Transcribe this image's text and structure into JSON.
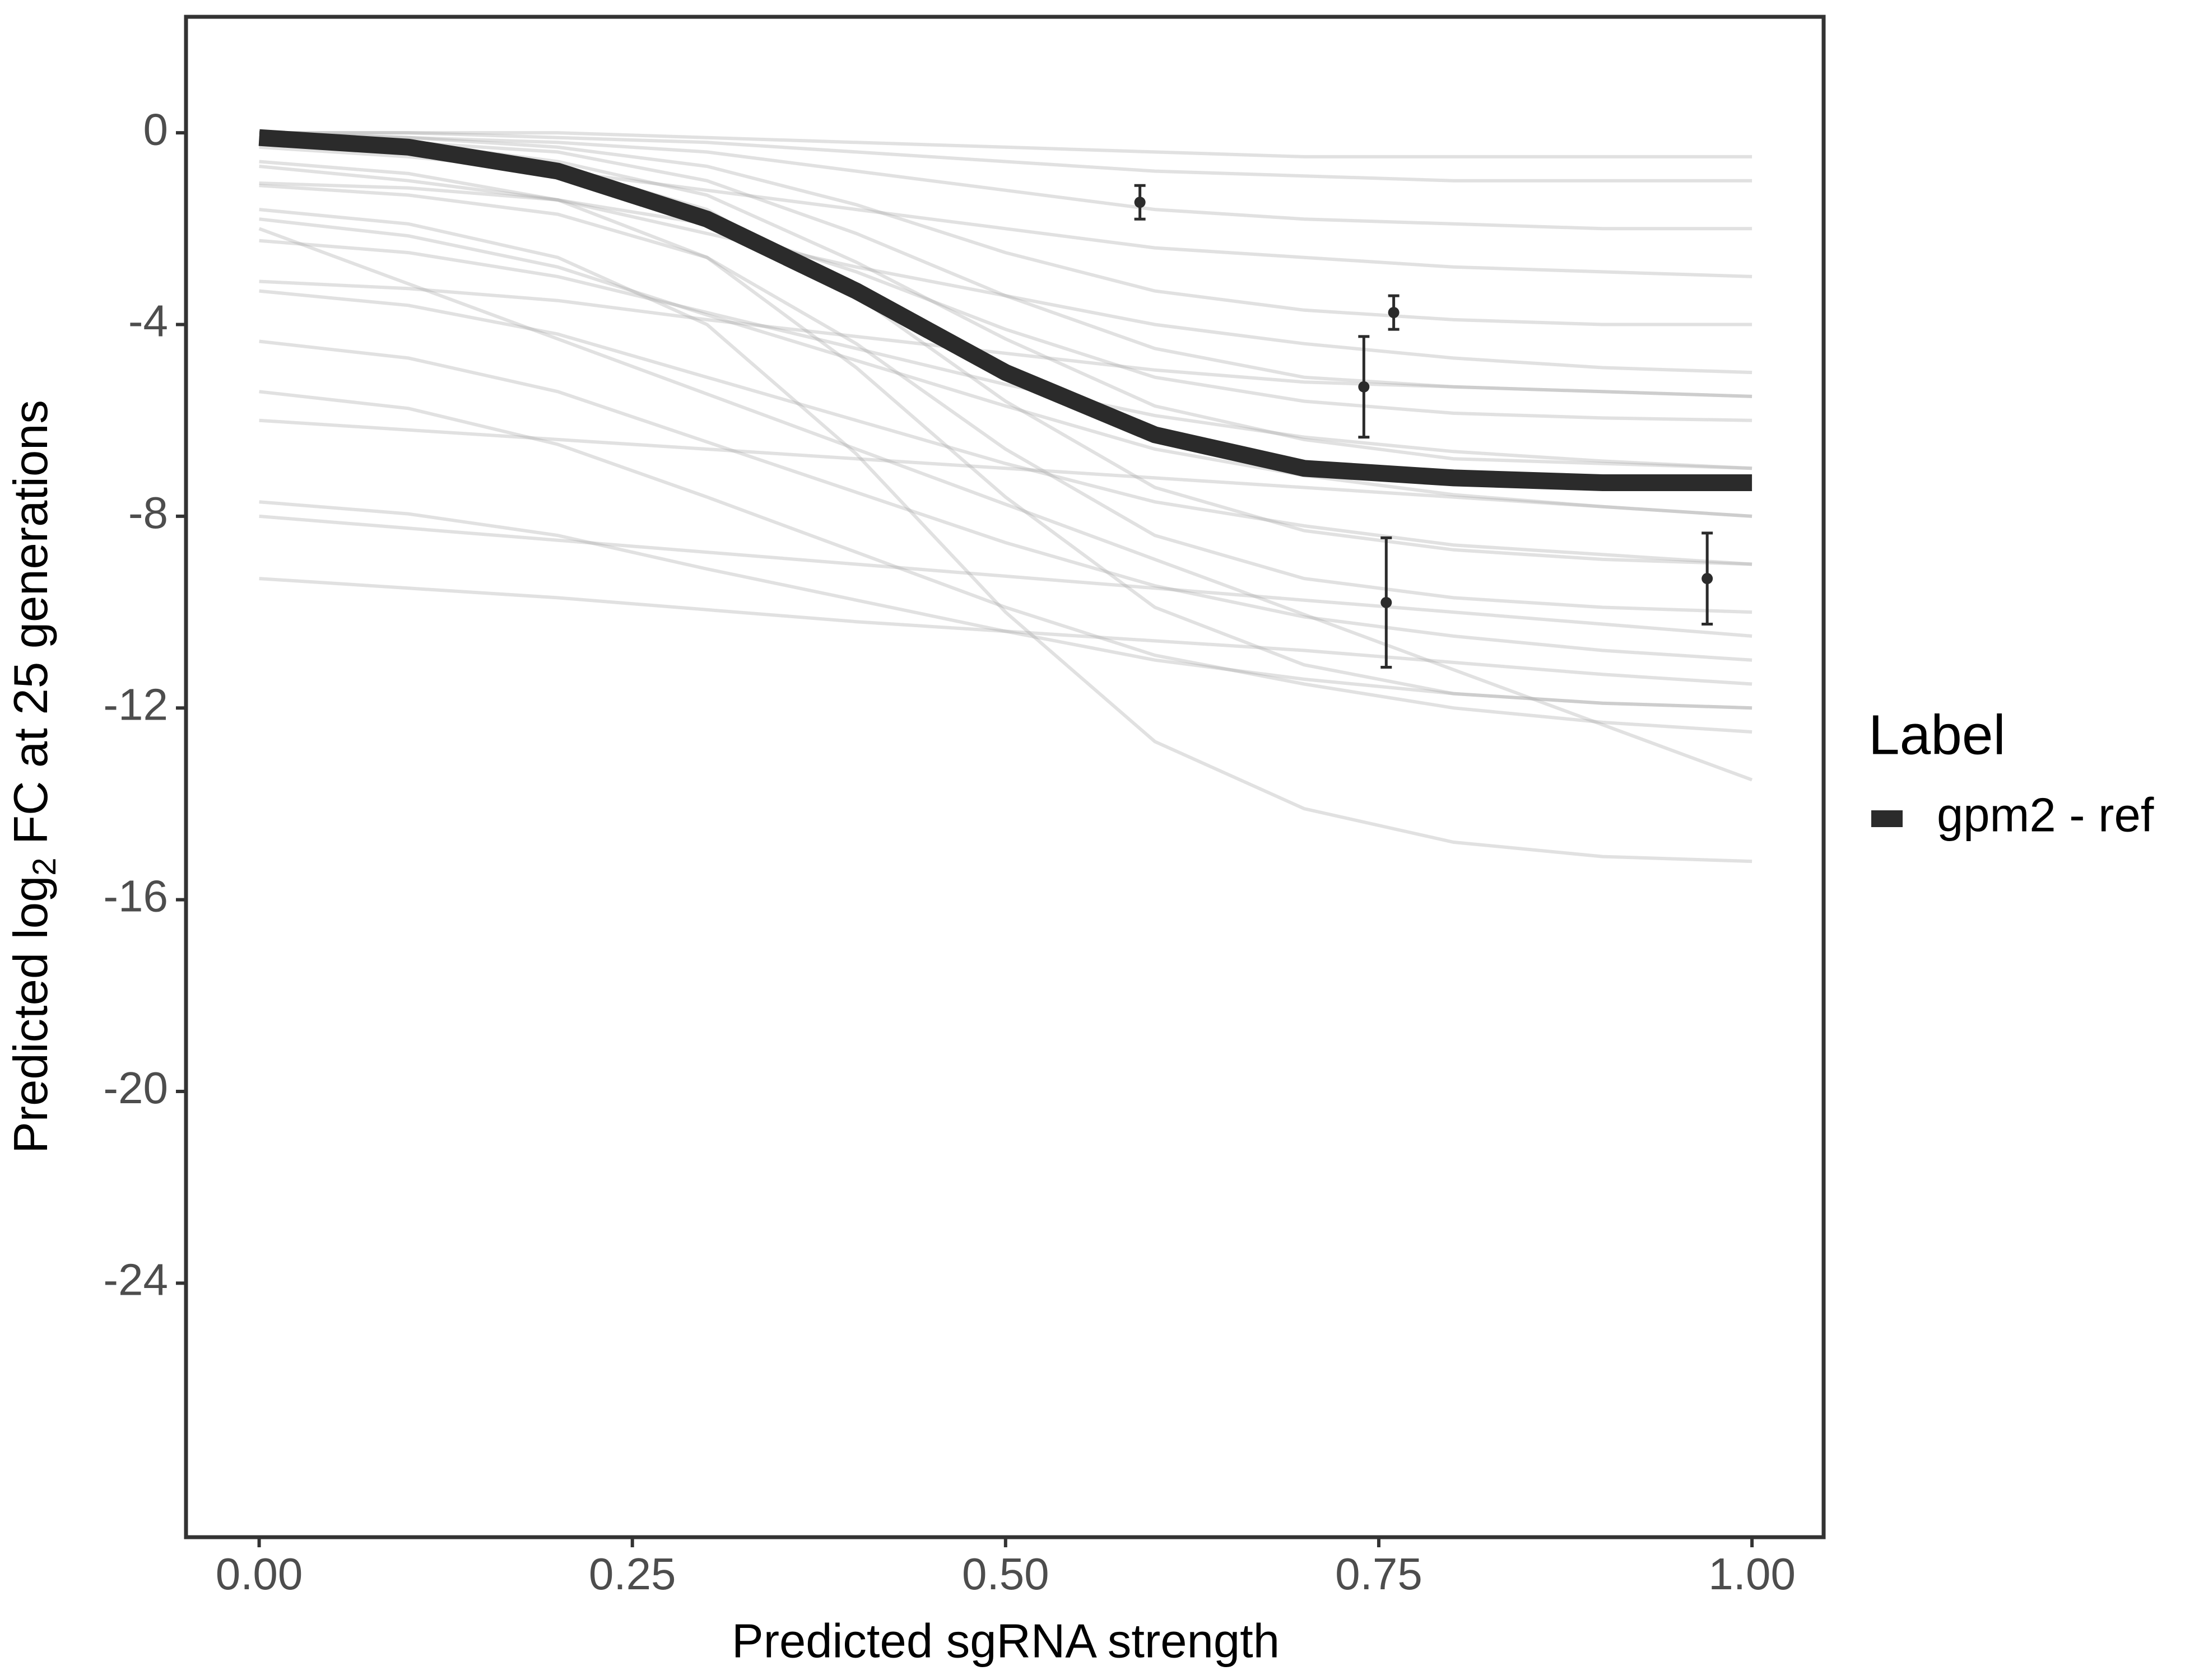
{
  "chart_data": {
    "type": "line",
    "x_label": "Predicted sgRNA strength",
    "y_label": [
      "Predicted  log",
      "2",
      " FC at 25 generations"
    ],
    "legend_title": "Label",
    "legend": "right",
    "x": [
      0,
      0.1,
      0.2,
      0.3,
      0.4,
      0.5,
      0.6,
      0.7,
      0.8,
      0.9,
      1.0
    ],
    "xlim": [
      -0.049,
      1.048
    ],
    "ylim": [
      -29.3,
      2.42
    ],
    "xticks": [
      {
        "value": 0,
        "label": "0.00"
      },
      {
        "value": 0.25,
        "label": "0.25"
      },
      {
        "value": 0.5,
        "label": "0.50"
      },
      {
        "value": 0.75,
        "label": "0.75"
      },
      {
        "value": 1,
        "label": "1.00"
      }
    ],
    "yticks": [
      0,
      -4,
      -8,
      -12,
      -16,
      -20,
      -24
    ],
    "draw_color": "#aaaaaa",
    "draws": [
      [
        0,
        0,
        0,
        -0.1,
        -0.2,
        -0.3,
        -0.4,
        -0.5,
        -0.5,
        -0.5,
        -0.5
      ],
      [
        0,
        -0.1,
        -0.2,
        -0.4,
        -0.8,
        -1.2,
        -1.6,
        -1.8,
        -1.9,
        -2,
        -2
      ],
      [
        0,
        -0.1,
        -0.3,
        -0.7,
        -1.5,
        -2.5,
        -3.3,
        -3.7,
        -3.9,
        -4,
        -4
      ],
      [
        -0.7,
        -1,
        -1.4,
        -2.1,
        -2.8,
        -3.4,
        -4,
        -4.4,
        -4.7,
        -4.9,
        -5
      ],
      [
        -1.05,
        -1.15,
        -1.4,
        -1.9,
        -2.9,
        -4.1,
        -5.1,
        -5.6,
        -5.85,
        -5.95,
        -6
      ],
      [
        -0.1,
        -0.2,
        -0.6,
        -1.3,
        -2.7,
        -4.3,
        -5.7,
        -6.4,
        -6.8,
        -6.9,
        -7
      ],
      [
        -2.25,
        -2.5,
        -3,
        -3.75,
        -4.5,
        -5.25,
        -5.9,
        -6.35,
        -6.65,
        -6.85,
        -7
      ],
      [
        -0.1,
        -0.3,
        -0.7,
        -1.6,
        -3.4,
        -5.6,
        -7.4,
        -8.3,
        -8.7,
        -8.9,
        -9
      ],
      [
        -3.3,
        -3.6,
        -4.2,
        -5.1,
        -6,
        -6.9,
        -7.7,
        -8.2,
        -8.6,
        -8.8,
        -9
      ],
      [
        -1.1,
        -1.3,
        -1.7,
        -2.6,
        -4.4,
        -6.6,
        -8.4,
        -9.3,
        -9.7,
        -9.9,
        -10
      ],
      [
        -4.35,
        -4.7,
        -5.4,
        -6.45,
        -7.5,
        -8.55,
        -9.45,
        -10.1,
        -10.5,
        -10.8,
        -11
      ],
      [
        -0.6,
        -0.85,
        -1.4,
        -2.6,
        -4.9,
        -7.6,
        -9.9,
        -11.1,
        -11.7,
        -11.9,
        -12
      ],
      [
        -5.4,
        -5.75,
        -6.5,
        -7.6,
        -8.75,
        -9.9,
        -10.9,
        -11.5,
        -12,
        -12.3,
        -12.5
      ],
      [
        -2,
        -3.15,
        -4.3,
        -5.45,
        -6.6,
        -7.75,
        -8.9,
        -10.05,
        -11.2,
        -12.35,
        -13.5
      ],
      [
        -1.6,
        -1.9,
        -2.6,
        -4,
        -6.7,
        -10,
        -12.7,
        -14.1,
        -14.8,
        -15.1,
        -15.2
      ],
      [
        -9.3,
        -9.5,
        -9.7,
        -9.95,
        -10.2,
        -10.4,
        -10.6,
        -10.8,
        -11.05,
        -11.3,
        -11.5
      ],
      [
        -7.7,
        -7.95,
        -8.4,
        -9.1,
        -9.75,
        -10.4,
        -11,
        -11.4,
        -11.7,
        -11.9,
        -12
      ],
      [
        -0.3,
        -0.5,
        -0.8,
        -1.2,
        -1.6,
        -2,
        -2.4,
        -2.6,
        -2.8,
        -2.9,
        -3
      ],
      [
        0,
        0,
        -0.1,
        -0.2,
        -0.4,
        -0.6,
        -0.8,
        -0.9,
        -1,
        -1,
        -1
      ],
      [
        -6,
        -6.2,
        -6.4,
        -6.6,
        -6.8,
        -7,
        -7.2,
        -7.4,
        -7.6,
        -7.8,
        -8
      ],
      [
        -3.1,
        -3.25,
        -3.5,
        -3.9,
        -4.25,
        -4.6,
        -4.95,
        -5.2,
        -5.3,
        -5.4,
        -5.5
      ],
      [
        -0.1,
        -0.2,
        -0.4,
        -1,
        -2.1,
        -3.4,
        -4.5,
        -5.1,
        -5.3,
        -5.4,
        -5.5
      ],
      [
        -1.8,
        -2.15,
        -2.8,
        -3.8,
        -4.75,
        -5.7,
        -6.6,
        -7.15,
        -7.55,
        -7.8,
        -8
      ],
      [
        -8,
        -8.25,
        -8.5,
        -8.75,
        -9,
        -9.25,
        -9.5,
        -9.75,
        -10,
        -10.25,
        -10.5
      ]
    ],
    "series": [
      {
        "name": "gpm2 - ref",
        "color": "#2b2b2b",
        "values": [
          -0.1,
          -0.3,
          -0.8,
          -1.8,
          -3.3,
          -5.0,
          -6.3,
          -7.0,
          -7.2,
          -7.3,
          -7.3
        ]
      }
    ],
    "points": {
      "color": "#2b2b2b",
      "x": [
        0.59,
        0.74,
        0.76,
        0.755,
        0.97
      ],
      "y": [
        -1.45,
        -5.3,
        -3.75,
        -9.8,
        -9.3
      ],
      "error": [
        0.35,
        1.05,
        0.35,
        1.35,
        0.95
      ]
    }
  }
}
